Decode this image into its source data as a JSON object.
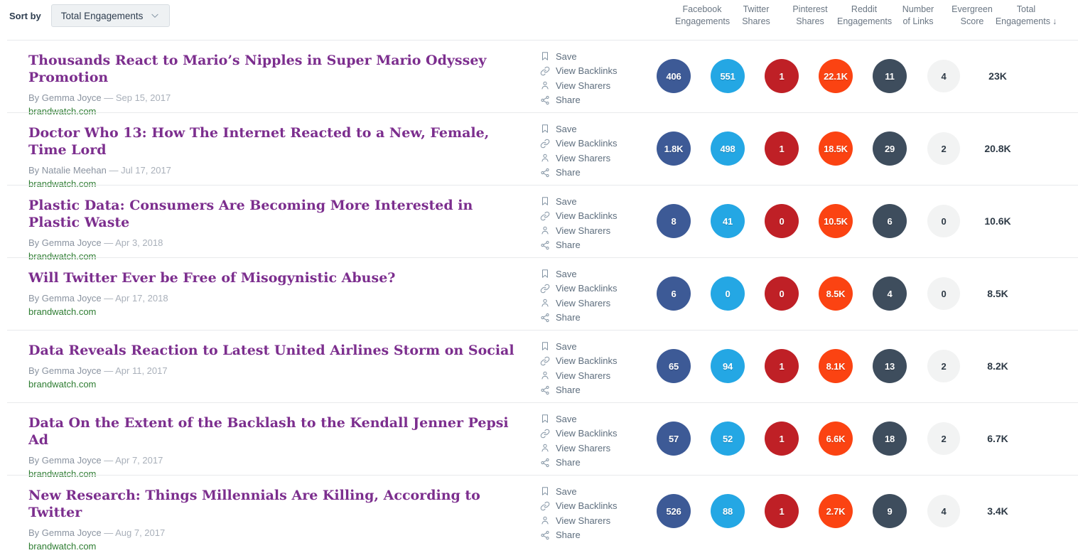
{
  "toolbar": {
    "sort_by_label": "Sort by",
    "sort_dropdown_value": "Total Engagements"
  },
  "columns": [
    {
      "label_line1": "Facebook",
      "label_line2": "Engagements"
    },
    {
      "label_line1": "Twitter",
      "label_line2": "Shares"
    },
    {
      "label_line1": "Pinterest",
      "label_line2": "Shares"
    },
    {
      "label_line1": "Reddit",
      "label_line2": "Engagements"
    },
    {
      "label_line1": "Number",
      "label_line2": "of Links"
    },
    {
      "label_line1": "Evergreen",
      "label_line2": "Score"
    },
    {
      "label_line1": "Total",
      "label_line2": "Engagements",
      "sort_arrow": "↓"
    }
  ],
  "actions": {
    "save": "Save",
    "view_backlinks": "View Backlinks",
    "view_sharers": "View Sharers",
    "share": "Share"
  },
  "colors": {
    "facebook": "#3d5a96",
    "twitter": "#24a7e4",
    "pinterest": "#bf2026",
    "reddit": "#fb4312",
    "links": "#3e4d5d",
    "evergreen_bg": "#f2f3f3",
    "title": "#7c2e8e",
    "domain": "#2e7d32",
    "accent_text": "#2e3d4f"
  },
  "rows": [
    {
      "title": "Thousands React to Mario’s Nipples in Super Mario Odyssey Promotion",
      "byline_author": "By Gemma Joyce",
      "byline_date": "— Sep 15, 2017",
      "domain": "brandwatch.com",
      "metrics": {
        "facebook": "406",
        "twitter": "551",
        "pinterest": "1",
        "reddit": "22.1K",
        "links": "11",
        "evergreen": "4",
        "total": "23K"
      }
    },
    {
      "title": "Doctor Who 13: How The Internet Reacted to a New, Female, Time Lord",
      "byline_author": "By Natalie Meehan",
      "byline_date": "— Jul 17, 2017",
      "domain": "brandwatch.com",
      "metrics": {
        "facebook": "1.8K",
        "twitter": "498",
        "pinterest": "1",
        "reddit": "18.5K",
        "links": "29",
        "evergreen": "2",
        "total": "20.8K"
      }
    },
    {
      "title": "Plastic Data: Consumers Are Becoming More Interested in Plastic Waste",
      "byline_author": "By Gemma Joyce",
      "byline_date": "— Apr 3, 2018",
      "domain": "brandwatch.com",
      "metrics": {
        "facebook": "8",
        "twitter": "41",
        "pinterest": "0",
        "reddit": "10.5K",
        "links": "6",
        "evergreen": "0",
        "total": "10.6K"
      }
    },
    {
      "title": "Will Twitter Ever be Free of Misogynistic Abuse?",
      "byline_author": "By Gemma Joyce",
      "byline_date": "— Apr 17, 2018",
      "domain": "brandwatch.com",
      "metrics": {
        "facebook": "6",
        "twitter": "0",
        "pinterest": "0",
        "reddit": "8.5K",
        "links": "4",
        "evergreen": "0",
        "total": "8.5K"
      }
    },
    {
      "title": "Data Reveals Reaction to Latest United Airlines Storm on Social",
      "byline_author": "By Gemma Joyce",
      "byline_date": "— Apr 11, 2017",
      "domain": "brandwatch.com",
      "metrics": {
        "facebook": "65",
        "twitter": "94",
        "pinterest": "1",
        "reddit": "8.1K",
        "links": "13",
        "evergreen": "2",
        "total": "8.2K"
      }
    },
    {
      "title": "Data On the Extent of the Backlash to the Kendall Jenner Pepsi Ad",
      "byline_author": "By Gemma Joyce",
      "byline_date": "— Apr 7, 2017",
      "domain": "brandwatch.com",
      "metrics": {
        "facebook": "57",
        "twitter": "52",
        "pinterest": "1",
        "reddit": "6.6K",
        "links": "18",
        "evergreen": "2",
        "total": "6.7K"
      }
    },
    {
      "title": "New Research: Things Millennials Are Killing, According to Twitter",
      "byline_author": "By Gemma Joyce",
      "byline_date": "— Aug 7, 2017",
      "domain": "brandwatch.com",
      "metrics": {
        "facebook": "526",
        "twitter": "88",
        "pinterest": "1",
        "reddit": "2.7K",
        "links": "9",
        "evergreen": "4",
        "total": "3.4K"
      }
    }
  ]
}
